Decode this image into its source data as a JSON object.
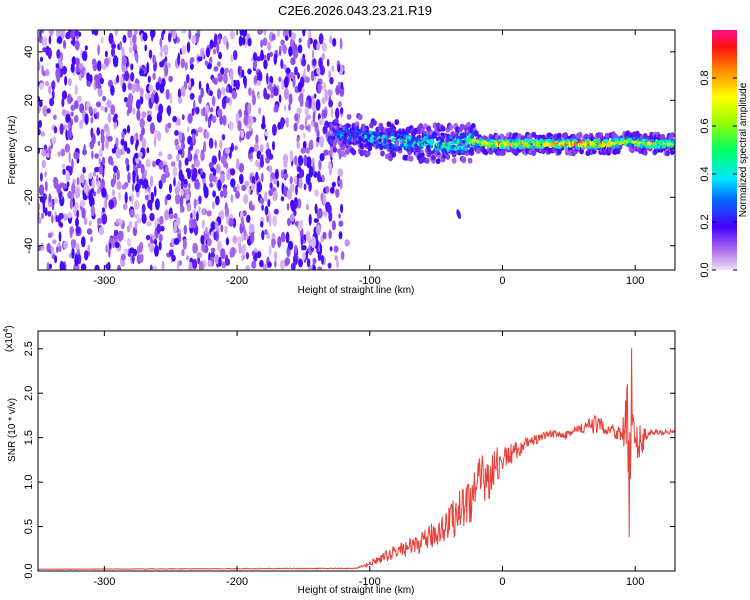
{
  "title": "C2E6.2026.043.23.21.R19",
  "chart_data": [
    {
      "type": "heatmap",
      "xlabel": "Height of straight line (km)",
      "ylabel": "Frequency (Hz)",
      "xlim": [
        -350,
        130
      ],
      "ylim": [
        -50,
        49
      ],
      "x_ticks": [
        -300,
        -200,
        -100,
        0,
        100
      ],
      "y_ticks": [
        -40,
        -20,
        0,
        20,
        40
      ],
      "colorbar": {
        "label": "Normalized spectral amplitude",
        "range": [
          0,
          1
        ],
        "ticks": [
          0.0,
          0.2,
          0.4,
          0.6,
          0.8
        ]
      },
      "noise_region_x": [
        -350,
        -120
      ],
      "ridge": {
        "x": [
          -130,
          -110,
          -90,
          -70,
          -50,
          -30,
          -20,
          -10,
          0,
          20,
          40,
          60,
          80,
          95,
          110,
          130
        ],
        "freq": [
          5,
          6,
          4,
          3,
          2,
          2,
          3,
          2,
          2,
          2,
          2,
          2,
          2,
          3,
          2,
          2
        ],
        "amplitude": [
          0.35,
          0.45,
          0.5,
          0.55,
          0.55,
          0.6,
          0.7,
          0.85,
          0.9,
          0.9,
          0.9,
          0.92,
          0.9,
          0.7,
          0.8,
          0.7
        ]
      },
      "blob": {
        "x": -33,
        "freq": -27
      }
    },
    {
      "type": "line",
      "xlabel": "Height of straight line (km)",
      "ylabel": "SNR (10 * v/v)",
      "y_scale_label": "(x10",
      "y_scale_exp": "4",
      "xlim": [
        -350,
        130
      ],
      "ylim": [
        0,
        2.7
      ],
      "x_ticks": [
        -300,
        -200,
        -100,
        0,
        100
      ],
      "y_ticks": [
        0.0,
        0.5,
        1.0,
        1.5,
        2.0,
        2.5
      ],
      "series": [
        {
          "color": "#e8403a",
          "x": [
            -350,
            -110,
            -100,
            -80,
            -60,
            -40,
            -20,
            -10,
            0,
            20,
            40,
            50,
            60,
            70,
            80,
            90,
            95,
            100,
            110,
            130
          ],
          "y": [
            0.02,
            0.03,
            0.08,
            0.22,
            0.32,
            0.55,
            0.9,
            1.1,
            1.25,
            1.45,
            1.55,
            1.55,
            1.6,
            1.65,
            1.6,
            1.55,
            1.6,
            1.4,
            1.55,
            1.57
          ],
          "noise": [
            0.002,
            0.005,
            0.03,
            0.08,
            0.12,
            0.2,
            0.35,
            0.3,
            0.15,
            0.06,
            0.05,
            0.06,
            0.08,
            0.1,
            0.08,
            0.1,
            0.6,
            0.3,
            0.04,
            0.02
          ]
        }
      ]
    }
  ]
}
